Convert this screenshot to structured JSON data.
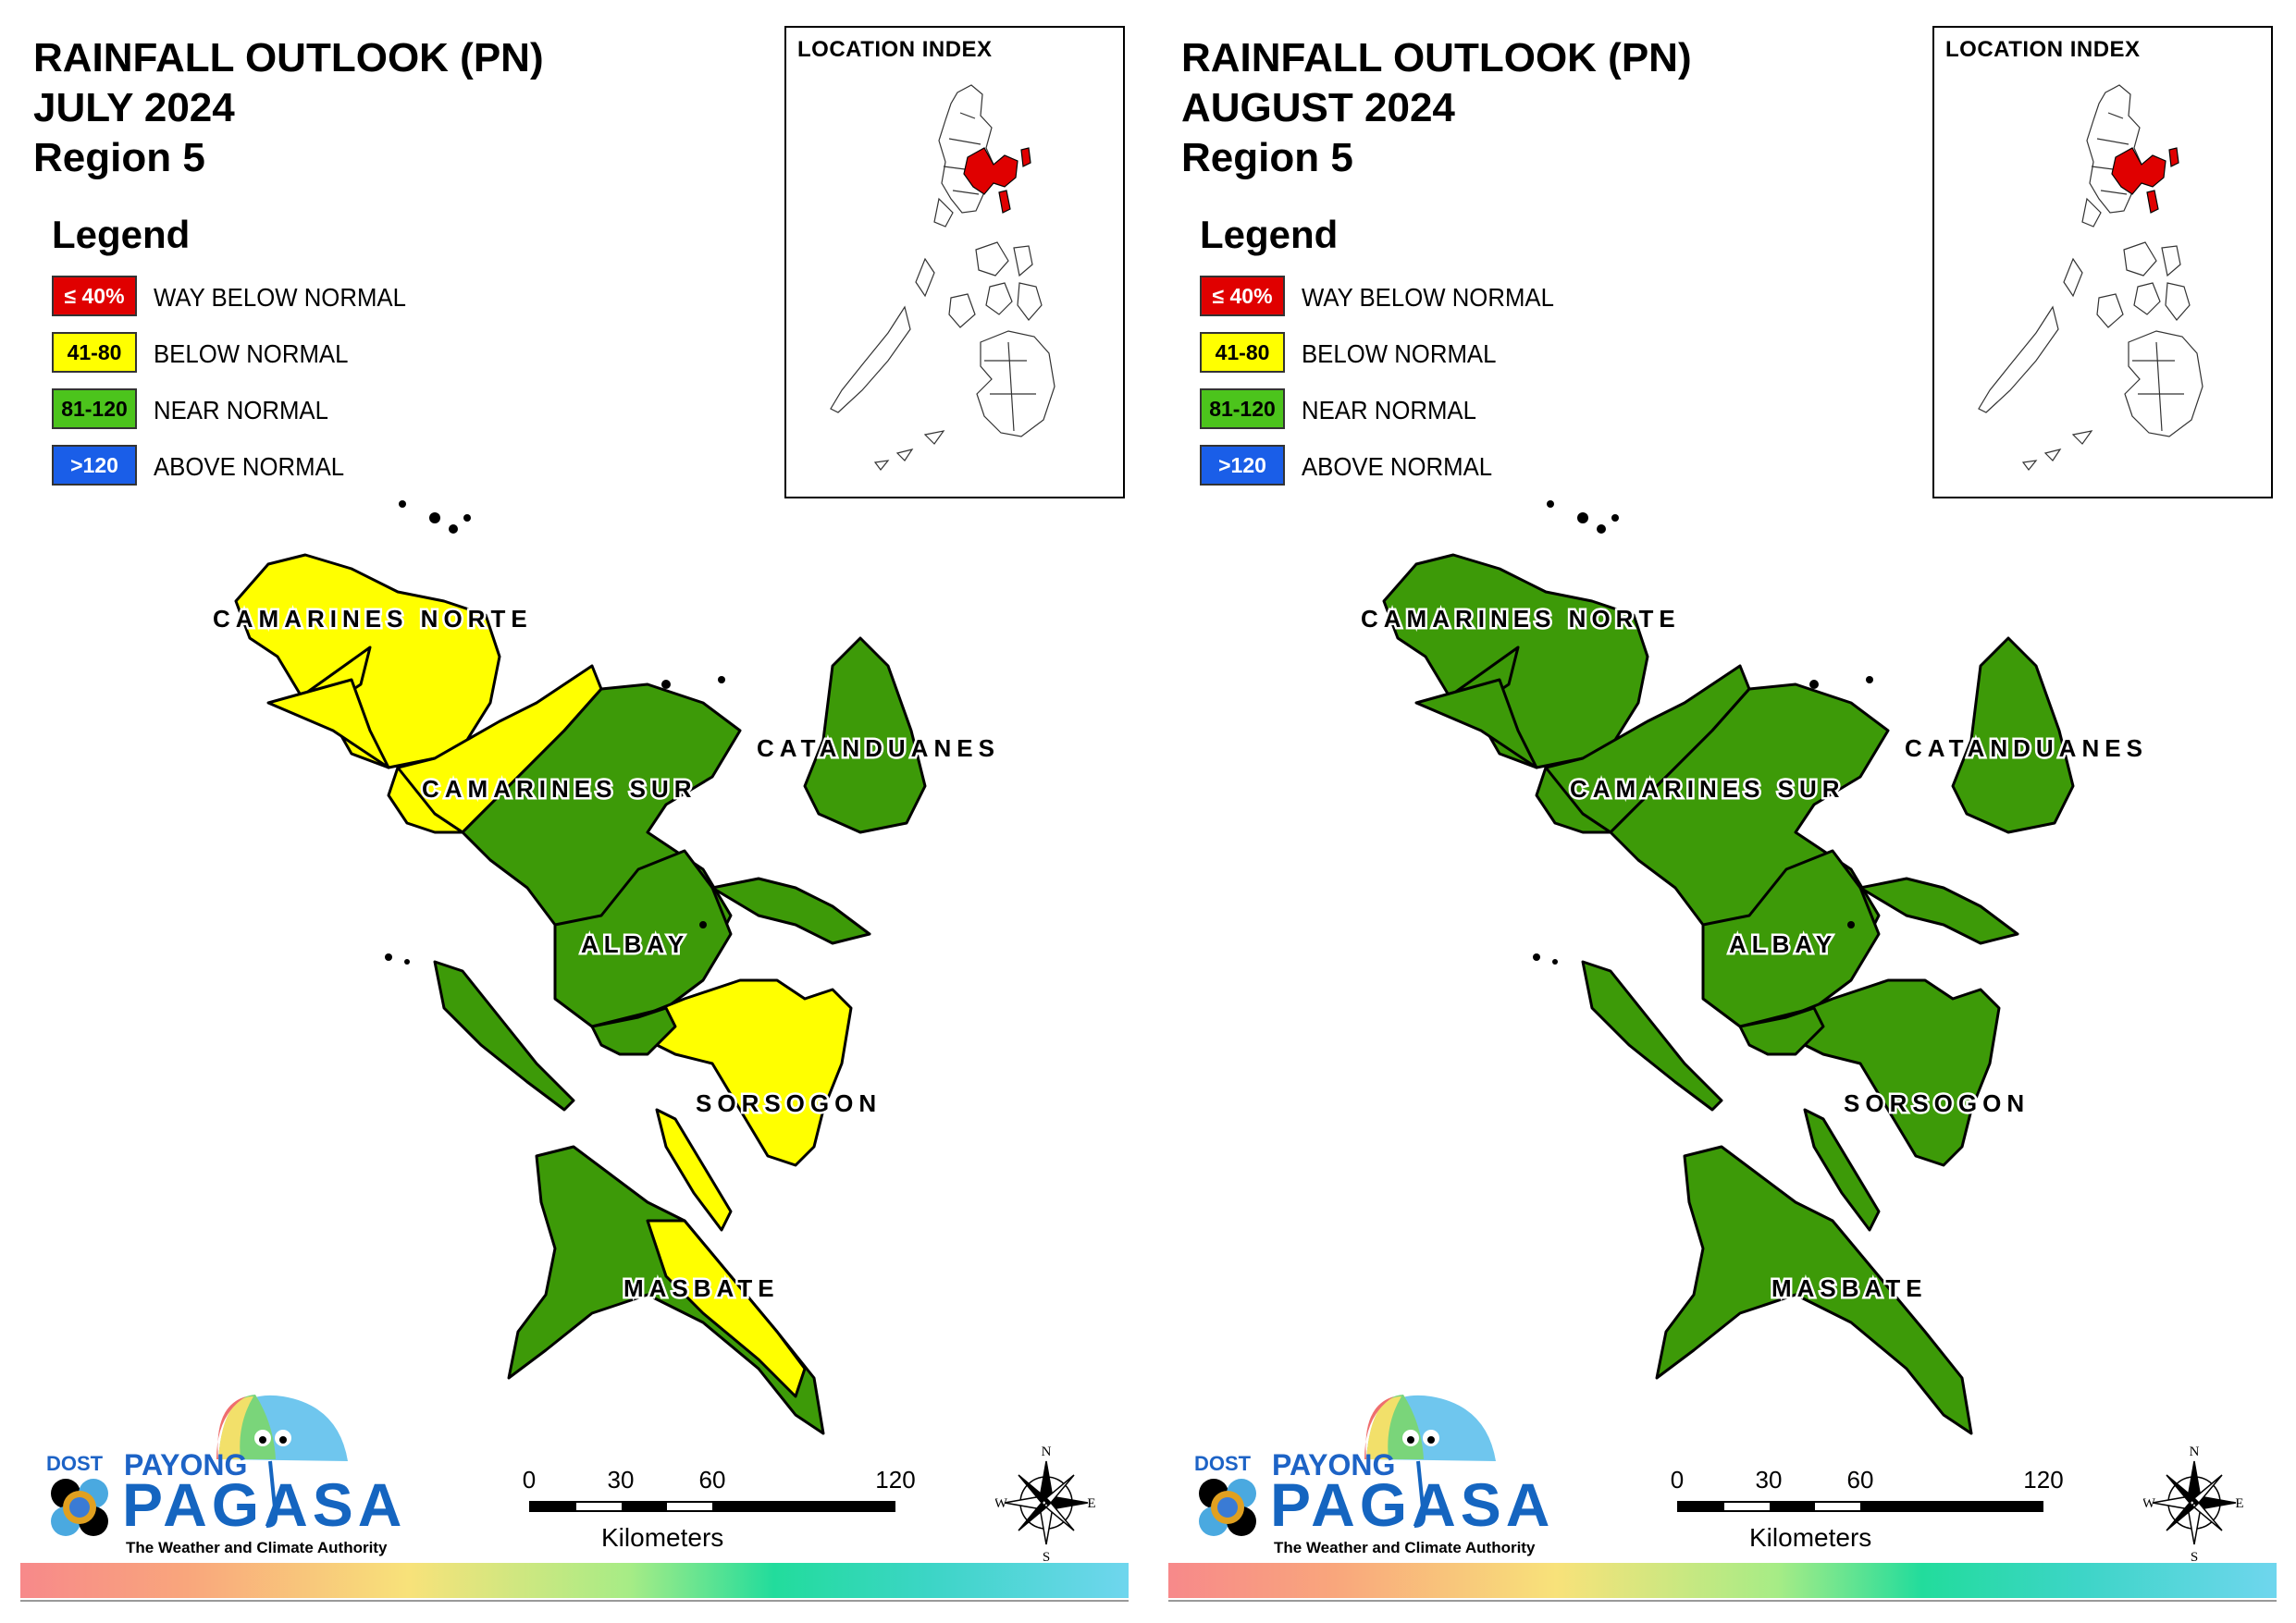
{
  "panels": [
    {
      "title_line1": "RAINFALL OUTLOOK (PN)",
      "title_line2": "JULY 2024",
      "title_line3": "Region 5",
      "legend_title": "Legend",
      "index_title": "LOCATION INDEX",
      "provinces": {
        "camarines_norte": {
          "name": "CAMARINES NORTE",
          "category": "BELOW NORMAL"
        },
        "camarines_sur": {
          "name": "CAMARINES SUR",
          "category": "BELOW NORMAL / NEAR NORMAL"
        },
        "catanduanes": {
          "name": "CATANDUANES",
          "category": "NEAR NORMAL"
        },
        "albay": {
          "name": "ALBAY",
          "category": "NEAR NORMAL"
        },
        "sorsogon": {
          "name": "SORSOGON",
          "category": "BELOW NORMAL / NEAR NORMAL"
        },
        "masbate": {
          "name": "MASBATE",
          "category": "NEAR NORMAL / BELOW NORMAL"
        }
      }
    },
    {
      "title_line1": "RAINFALL OUTLOOK (PN)",
      "title_line2": "AUGUST 2024",
      "title_line3": "Region 5",
      "legend_title": "Legend",
      "index_title": "LOCATION INDEX",
      "provinces": {
        "camarines_norte": {
          "name": "CAMARINES NORTE",
          "category": "NEAR NORMAL"
        },
        "camarines_sur": {
          "name": "CAMARINES SUR",
          "category": "NEAR NORMAL"
        },
        "catanduanes": {
          "name": "CATANDUANES",
          "category": "NEAR NORMAL"
        },
        "albay": {
          "name": "ALBAY",
          "category": "NEAR NORMAL"
        },
        "sorsogon": {
          "name": "SORSOGON",
          "category": "NEAR NORMAL"
        },
        "masbate": {
          "name": "MASBATE",
          "category": "NEAR NORMAL"
        }
      }
    }
  ],
  "legend": [
    {
      "range": "≤ 40%",
      "label": "WAY BELOW NORMAL",
      "color": "#e00000",
      "text_color": "#ffffff"
    },
    {
      "range": "41-80",
      "label": "BELOW NORMAL",
      "color": "#ffff00",
      "text_color": "#000000"
    },
    {
      "range": "81-120",
      "label": "NEAR NORMAL",
      "color": "#4cc41c",
      "text_color": "#000000"
    },
    {
      "range": ">120",
      "label": "ABOVE NORMAL",
      "color": "#1a5ee8",
      "text_color": "#ffffff"
    }
  ],
  "map_colors": {
    "near_normal": "#3d9a08",
    "below_normal": "#ffff00",
    "highlight": "#e00000",
    "outline": "#000000"
  },
  "scale": {
    "ticks": [
      "0",
      "30",
      "60",
      "120"
    ],
    "unit": "Kilometers"
  },
  "compass": {
    "n": "N",
    "s": "S",
    "e": "E",
    "w": "W"
  },
  "logo": {
    "dost": "DOST",
    "payong": "PAYONG",
    "pagasa": "PAGASA",
    "tagline": "The Weather and Climate Authority"
  }
}
